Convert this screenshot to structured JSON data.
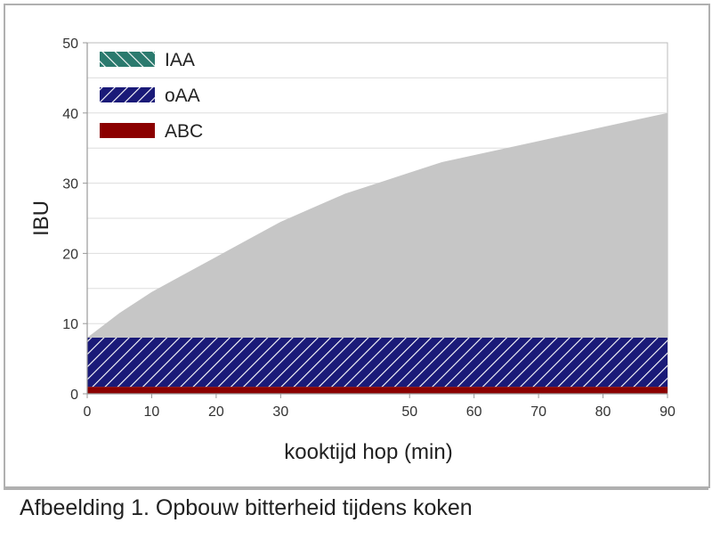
{
  "caption": "Afbeelding 1.  Opbouw bitterheid tijdens koken",
  "colors": {
    "IAA": "#c6c6c6",
    "IAA_legend": "#2b7a6e",
    "oAA": "#1a1a78",
    "ABC": "#8b0000",
    "grid": "#dddddd",
    "axis": "#999999"
  },
  "chart_data": {
    "type": "area",
    "stacked": true,
    "xlabel": "kooktijd hop (min)",
    "ylabel": "IBU",
    "xlim": [
      0,
      90
    ],
    "ylim": [
      0,
      50
    ],
    "x_ticks": [
      0,
      10,
      20,
      30,
      50,
      60,
      70,
      80,
      90
    ],
    "y_ticks": [
      0,
      10,
      20,
      30,
      40,
      50
    ],
    "grid": true,
    "legend_position": "top-left",
    "x": [
      0,
      5,
      10,
      15,
      20,
      25,
      30,
      35,
      40,
      45,
      50,
      55,
      60,
      65,
      70,
      75,
      80,
      85,
      90
    ],
    "series": [
      {
        "name": "ABC",
        "pattern": "solid",
        "cumulative_top": [
          1,
          1,
          1,
          1,
          1,
          1,
          1,
          1,
          1,
          1,
          1,
          1,
          1,
          1,
          1,
          1,
          1,
          1,
          1
        ]
      },
      {
        "name": "oAA",
        "pattern": "diagonal-hatch",
        "cumulative_top": [
          8,
          8,
          8,
          8,
          8,
          8,
          8,
          8,
          8,
          8,
          8,
          8,
          8,
          8,
          8,
          8,
          8,
          8,
          8
        ]
      },
      {
        "name": "IAA",
        "pattern": "diagonal-hatch",
        "cumulative_top": [
          8,
          11.5,
          14.5,
          17,
          19.5,
          22,
          24.5,
          26.5,
          28.5,
          30,
          31.5,
          33,
          34,
          35,
          36,
          37,
          38,
          39,
          40
        ]
      }
    ],
    "legend": [
      "IAA",
      "oAA",
      "ABC"
    ]
  }
}
